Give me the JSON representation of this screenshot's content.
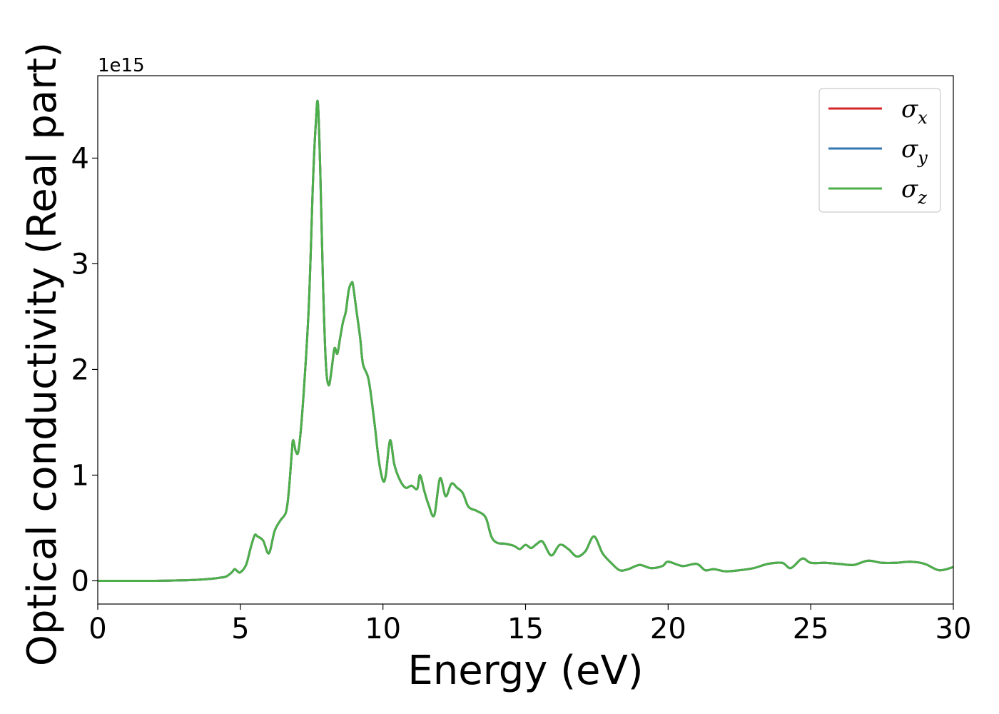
{
  "chart_data": {
    "type": "line",
    "title": "",
    "xlabel": "Energy (eV)",
    "ylabel": "Optical conductivity (Real part)",
    "y_offset_label": "1e15",
    "y_scale": 1000000000000000.0,
    "xlim": [
      0,
      30
    ],
    "ylim": [
      -0.22,
      4.78
    ],
    "x_ticks": [
      0,
      5,
      10,
      15,
      20,
      25,
      30
    ],
    "x_tick_labels": [
      "0",
      "5",
      "10",
      "15",
      "20",
      "25",
      "30"
    ],
    "y_ticks": [
      0,
      1,
      2,
      3,
      4
    ],
    "y_tick_labels": [
      "0",
      "1",
      "2",
      "3",
      "4"
    ],
    "grid": false,
    "legend_position": "top-right",
    "x": [
      0,
      1,
      2,
      3,
      3.5,
      4,
      4.3,
      4.5,
      4.7,
      4.8,
      4.9,
      5.0,
      5.2,
      5.35,
      5.5,
      5.6,
      5.8,
      6.0,
      6.2,
      6.4,
      6.6,
      6.7,
      6.8,
      6.85,
      6.95,
      7.05,
      7.2,
      7.4,
      7.55,
      7.65,
      7.72,
      7.8,
      7.9,
      8.0,
      8.1,
      8.2,
      8.3,
      8.4,
      8.5,
      8.6,
      8.7,
      8.8,
      8.9,
      8.95,
      9.05,
      9.2,
      9.3,
      9.5,
      9.7,
      9.85,
      10.0,
      10.1,
      10.25,
      10.4,
      10.6,
      10.8,
      11.0,
      11.2,
      11.3,
      11.45,
      11.6,
      11.8,
      12.0,
      12.2,
      12.4,
      12.6,
      12.8,
      13.0,
      13.3,
      13.6,
      13.8,
      14.0,
      14.3,
      14.6,
      14.8,
      15.0,
      15.2,
      15.4,
      15.6,
      15.9,
      16.2,
      16.5,
      16.8,
      17.1,
      17.4,
      17.7,
      18.0,
      18.3,
      18.6,
      19.0,
      19.4,
      19.8,
      20.0,
      20.5,
      21.0,
      21.3,
      21.6,
      22.0,
      22.5,
      23.0,
      23.5,
      24.0,
      24.3,
      24.7,
      25.0,
      25.5,
      26.0,
      26.5,
      27.0,
      27.5,
      28.0,
      28.5,
      29.0,
      29.5,
      30.0
    ],
    "series": [
      {
        "name": "σx",
        "color": "#d62728",
        "values": [
          0.0,
          0.0,
          0.0,
          0.005,
          0.01,
          0.02,
          0.03,
          0.04,
          0.08,
          0.11,
          0.09,
          0.08,
          0.15,
          0.3,
          0.43,
          0.42,
          0.38,
          0.26,
          0.47,
          0.57,
          0.65,
          0.85,
          1.2,
          1.33,
          1.22,
          1.25,
          1.7,
          2.6,
          3.8,
          4.35,
          4.52,
          3.9,
          2.8,
          2.05,
          1.85,
          2.0,
          2.2,
          2.15,
          2.3,
          2.45,
          2.55,
          2.75,
          2.82,
          2.8,
          2.6,
          2.3,
          2.05,
          1.9,
          1.5,
          1.15,
          0.95,
          1.0,
          1.33,
          1.1,
          0.95,
          0.88,
          0.9,
          0.87,
          1.0,
          0.85,
          0.72,
          0.62,
          0.97,
          0.8,
          0.92,
          0.88,
          0.83,
          0.7,
          0.66,
          0.6,
          0.42,
          0.36,
          0.35,
          0.33,
          0.3,
          0.34,
          0.31,
          0.35,
          0.37,
          0.24,
          0.34,
          0.3,
          0.23,
          0.28,
          0.42,
          0.26,
          0.17,
          0.1,
          0.11,
          0.15,
          0.12,
          0.14,
          0.18,
          0.14,
          0.16,
          0.1,
          0.11,
          0.09,
          0.1,
          0.12,
          0.16,
          0.17,
          0.12,
          0.21,
          0.17,
          0.17,
          0.16,
          0.15,
          0.19,
          0.17,
          0.17,
          0.18,
          0.16,
          0.1,
          0.13
        ]
      },
      {
        "name": "σy",
        "color": "#3777b0",
        "values": [
          0.0,
          0.0,
          0.0,
          0.005,
          0.01,
          0.02,
          0.03,
          0.04,
          0.08,
          0.11,
          0.09,
          0.08,
          0.15,
          0.3,
          0.43,
          0.42,
          0.38,
          0.26,
          0.47,
          0.57,
          0.65,
          0.85,
          1.2,
          1.33,
          1.22,
          1.25,
          1.7,
          2.6,
          3.8,
          4.35,
          4.52,
          3.9,
          2.8,
          2.05,
          1.85,
          2.0,
          2.2,
          2.15,
          2.3,
          2.45,
          2.55,
          2.75,
          2.82,
          2.8,
          2.6,
          2.3,
          2.05,
          1.9,
          1.5,
          1.15,
          0.95,
          1.0,
          1.33,
          1.1,
          0.95,
          0.88,
          0.9,
          0.87,
          1.0,
          0.85,
          0.72,
          0.62,
          0.97,
          0.8,
          0.92,
          0.88,
          0.83,
          0.7,
          0.66,
          0.6,
          0.42,
          0.36,
          0.35,
          0.33,
          0.3,
          0.34,
          0.31,
          0.35,
          0.37,
          0.24,
          0.34,
          0.3,
          0.23,
          0.28,
          0.42,
          0.26,
          0.17,
          0.1,
          0.11,
          0.15,
          0.12,
          0.14,
          0.18,
          0.14,
          0.16,
          0.1,
          0.11,
          0.09,
          0.1,
          0.12,
          0.16,
          0.17,
          0.12,
          0.21,
          0.17,
          0.17,
          0.16,
          0.15,
          0.19,
          0.17,
          0.17,
          0.18,
          0.16,
          0.1,
          0.13
        ]
      },
      {
        "name": "σz",
        "color": "#4daf4a",
        "values": [
          0.0,
          0.0,
          0.0,
          0.005,
          0.01,
          0.02,
          0.03,
          0.04,
          0.08,
          0.11,
          0.09,
          0.08,
          0.15,
          0.3,
          0.43,
          0.42,
          0.38,
          0.26,
          0.47,
          0.57,
          0.65,
          0.85,
          1.2,
          1.33,
          1.22,
          1.25,
          1.7,
          2.6,
          3.8,
          4.35,
          4.52,
          3.9,
          2.8,
          2.05,
          1.85,
          2.0,
          2.2,
          2.15,
          2.3,
          2.45,
          2.55,
          2.75,
          2.82,
          2.8,
          2.6,
          2.3,
          2.05,
          1.9,
          1.5,
          1.15,
          0.95,
          1.0,
          1.33,
          1.1,
          0.95,
          0.88,
          0.9,
          0.87,
          1.0,
          0.85,
          0.72,
          0.62,
          0.97,
          0.8,
          0.92,
          0.88,
          0.83,
          0.7,
          0.66,
          0.6,
          0.42,
          0.36,
          0.35,
          0.33,
          0.3,
          0.34,
          0.31,
          0.35,
          0.37,
          0.24,
          0.34,
          0.3,
          0.23,
          0.28,
          0.42,
          0.26,
          0.17,
          0.1,
          0.11,
          0.15,
          0.12,
          0.14,
          0.18,
          0.14,
          0.16,
          0.1,
          0.11,
          0.09,
          0.1,
          0.12,
          0.16,
          0.17,
          0.12,
          0.21,
          0.17,
          0.17,
          0.16,
          0.15,
          0.19,
          0.17,
          0.17,
          0.18,
          0.16,
          0.1,
          0.13
        ]
      }
    ],
    "legend": [
      {
        "symbol": "σ",
        "subscript": "x"
      },
      {
        "symbol": "σ",
        "subscript": "y"
      },
      {
        "symbol": "σ",
        "subscript": "z"
      }
    ]
  }
}
